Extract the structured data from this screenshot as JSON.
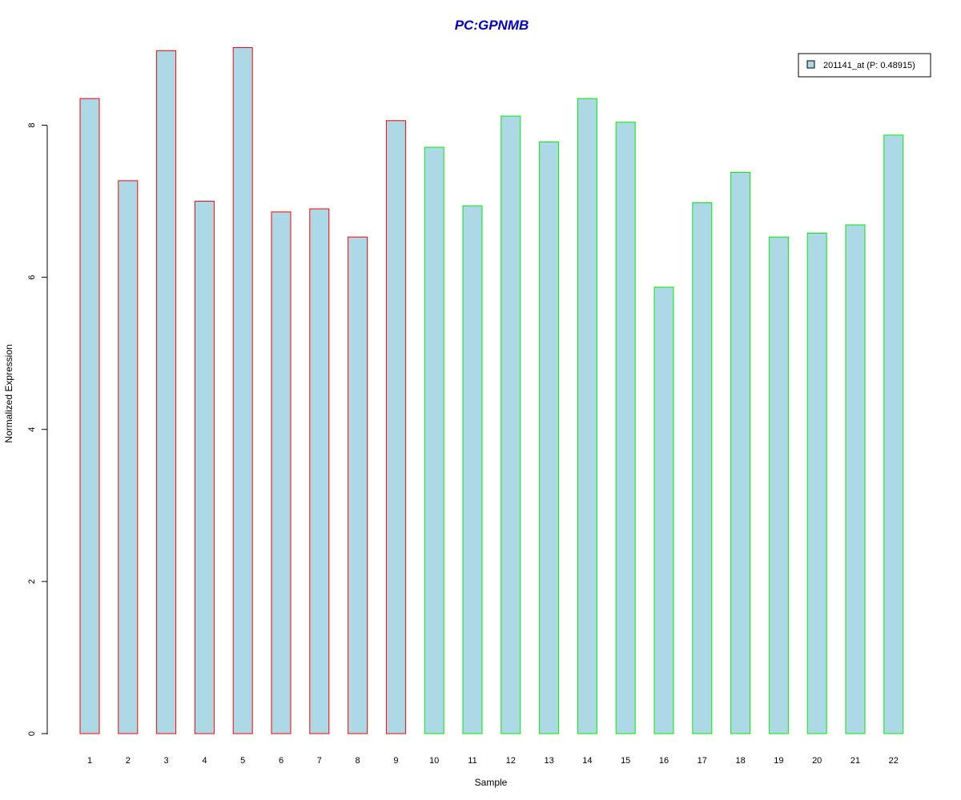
{
  "colors": {
    "title": "#0000cc",
    "bar_fill": "#add8e6",
    "group1_border": "#ff0000",
    "group2_border": "#00ee00",
    "axis": "#000000"
  },
  "chart_data": {
    "type": "bar",
    "title": "PC:GPNMB",
    "xlabel": "Sample",
    "ylabel": "Normalized Expression",
    "categories": [
      "1",
      "2",
      "3",
      "4",
      "5",
      "6",
      "7",
      "8",
      "9",
      "10",
      "11",
      "12",
      "13",
      "14",
      "15",
      "16",
      "17",
      "18",
      "19",
      "20",
      "21",
      "22"
    ],
    "series": [
      {
        "name": "201141_at (P: 0.48915)",
        "values": [
          8.35,
          7.27,
          8.98,
          7.0,
          9.02,
          6.86,
          6.9,
          6.53,
          8.06,
          7.71,
          6.94,
          8.12,
          7.78,
          8.35,
          8.04,
          5.87,
          6.98,
          7.38,
          6.53,
          6.58,
          6.69,
          7.87
        ]
      }
    ],
    "border_groups": [
      "group1",
      "group1",
      "group1",
      "group1",
      "group1",
      "group1",
      "group1",
      "group1",
      "group1",
      "group2",
      "group2",
      "group2",
      "group2",
      "group2",
      "group2",
      "group2",
      "group2",
      "group2",
      "group2",
      "group2",
      "group2",
      "group2"
    ],
    "yticks": [
      0,
      2,
      4,
      6,
      8
    ],
    "ylim": [
      0,
      9.02
    ],
    "grid": false,
    "legend_position": "top-right"
  }
}
